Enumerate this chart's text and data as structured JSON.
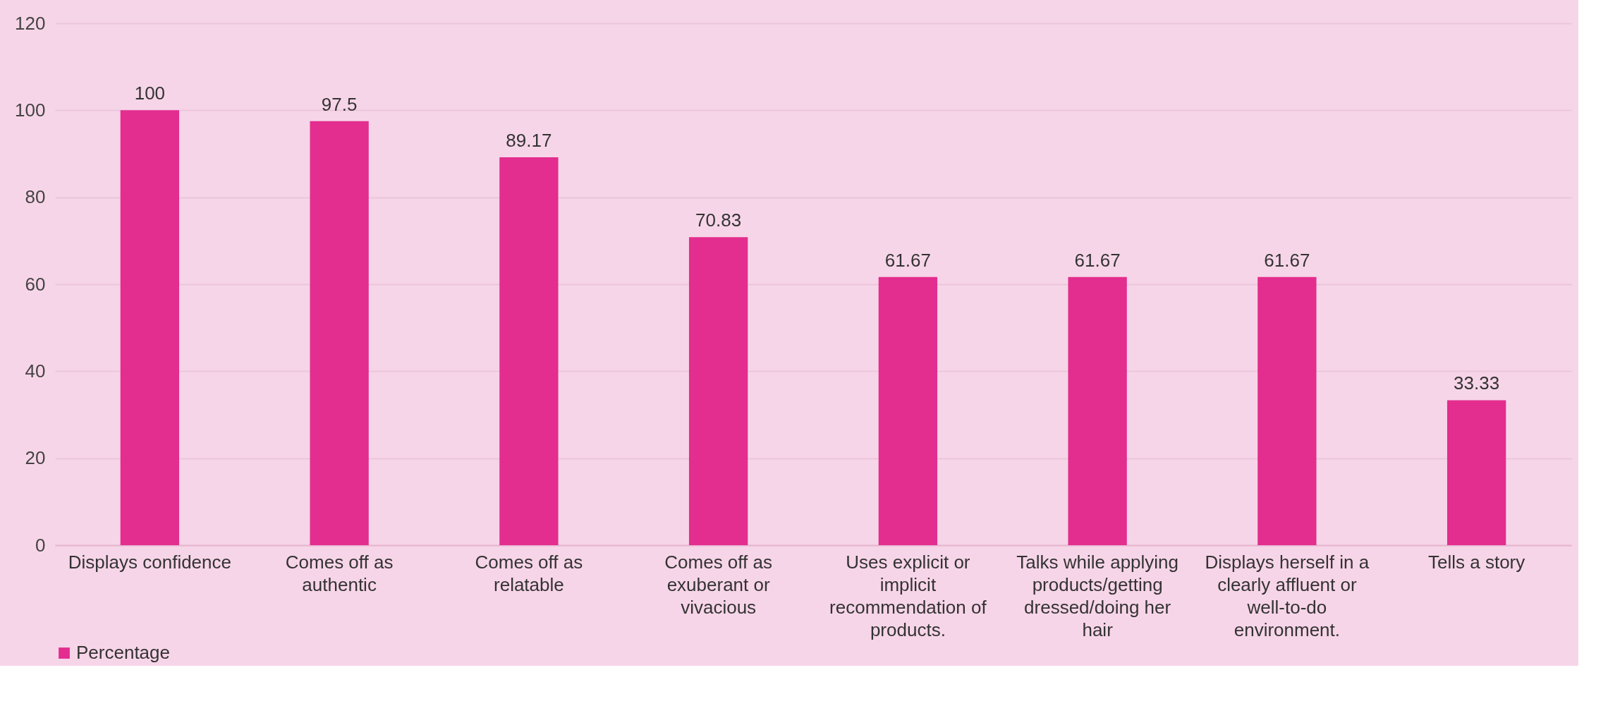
{
  "chart_data": {
    "type": "bar",
    "categories": [
      "Displays confidence",
      "Comes off as authentic",
      "Comes off as relatable",
      "Comes off as exuberant or vivacious",
      "Uses explicit or implicit recommendation of products.",
      "Talks while applying products/getting dressed/doing her hair",
      "Displays herself in a clearly affluent or well-to-do environment.",
      "Tells a story"
    ],
    "series": [
      {
        "name": "Percentage",
        "color": "#e32d8f",
        "values": [
          100,
          97.5,
          89.17,
          70.83,
          61.67,
          61.67,
          61.67,
          33.33
        ]
      }
    ],
    "ylim": [
      0,
      120
    ],
    "yticks": [
      0,
      20,
      40,
      60,
      80,
      100,
      120
    ],
    "grid": "y",
    "legend": "bottom",
    "data_labels": true
  }
}
